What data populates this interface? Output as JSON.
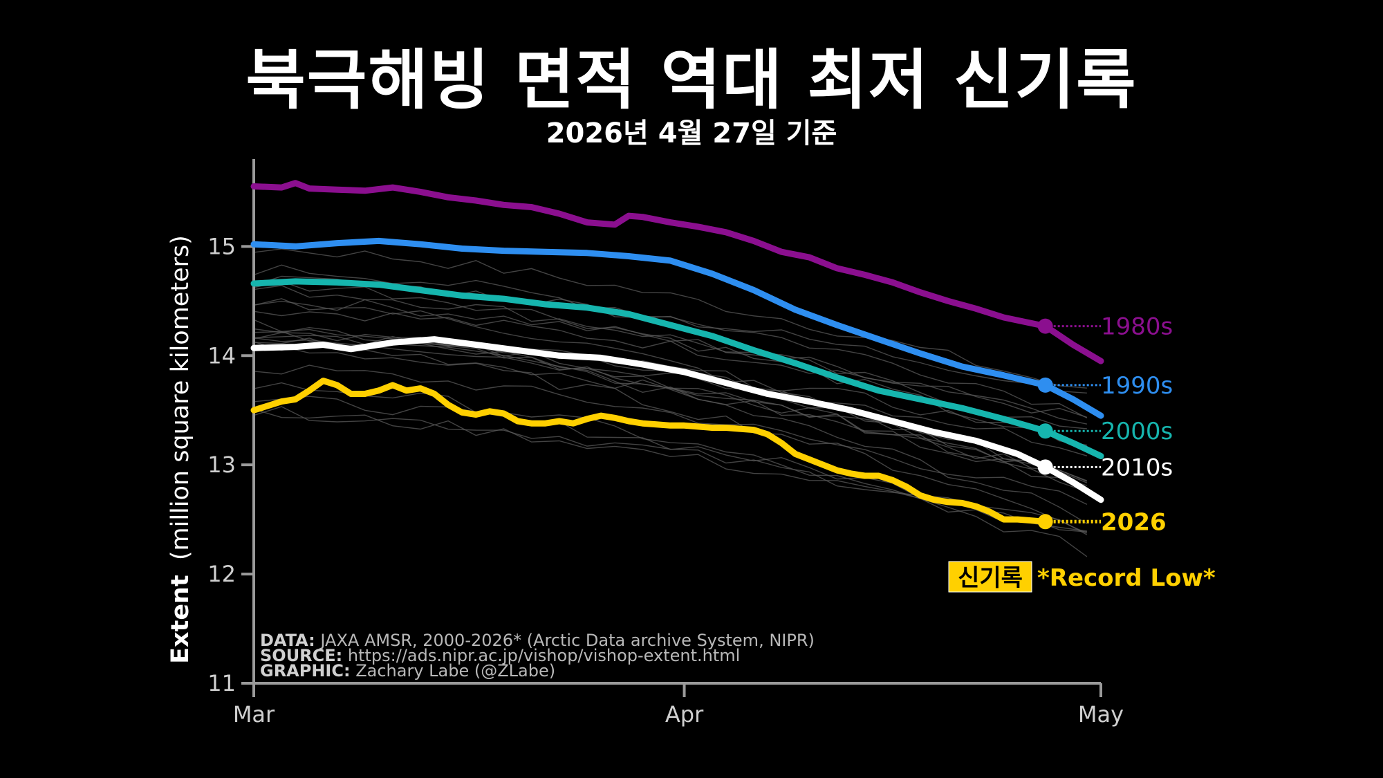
{
  "header": {
    "title": "북극해빙 면적 역대 최저 신기록",
    "subtitle": "2026년 4월 27일 기준"
  },
  "chart_data": {
    "type": "line",
    "ylabel_bold": "Extent",
    "ylabel_rest": "(million square kilometers)",
    "xlabel": "",
    "ylim": [
      11,
      15.8
    ],
    "yticks": [
      11,
      12,
      13,
      14,
      15
    ],
    "x_domain": [
      "03-01",
      "05-01"
    ],
    "x_ticks": [
      {
        "date": "03-01",
        "label": "Mar"
      },
      {
        "date": "04-01",
        "label": "Apr"
      },
      {
        "date": "05-01",
        "label": "May"
      }
    ],
    "grid": false,
    "marker_date": "04-27",
    "series": [
      {
        "name": "1980s",
        "color": "#8b0f8f",
        "x": [
          "03-01",
          "03-03",
          "03-04",
          "03-05",
          "03-07",
          "03-09",
          "03-11",
          "03-13",
          "03-15",
          "03-17",
          "03-19",
          "03-21",
          "03-23",
          "03-25",
          "03-27",
          "03-28",
          "03-29",
          "03-31",
          "04-02",
          "04-04",
          "04-06",
          "04-08",
          "04-10",
          "04-12",
          "04-14",
          "04-16",
          "04-18",
          "04-20",
          "04-22",
          "04-24",
          "04-27",
          "04-29",
          "05-01"
        ],
        "y": [
          15.55,
          15.54,
          15.58,
          15.53,
          15.52,
          15.51,
          15.54,
          15.5,
          15.45,
          15.42,
          15.38,
          15.36,
          15.3,
          15.22,
          15.2,
          15.28,
          15.27,
          15.22,
          15.18,
          15.13,
          15.05,
          14.95,
          14.9,
          14.8,
          14.74,
          14.67,
          14.58,
          14.5,
          14.43,
          14.35,
          14.27,
          14.1,
          13.95
        ]
      },
      {
        "name": "1990s",
        "color": "#2e8ef0",
        "x": [
          "03-01",
          "03-04",
          "03-07",
          "03-10",
          "03-13",
          "03-16",
          "03-19",
          "03-22",
          "03-25",
          "03-28",
          "03-31",
          "04-03",
          "04-06",
          "04-09",
          "04-12",
          "04-15",
          "04-18",
          "04-21",
          "04-24",
          "04-27",
          "04-29",
          "05-01"
        ],
        "y": [
          15.02,
          15.0,
          15.03,
          15.05,
          15.02,
          14.98,
          14.96,
          14.95,
          14.94,
          14.91,
          14.87,
          14.75,
          14.6,
          14.42,
          14.28,
          14.15,
          14.02,
          13.9,
          13.82,
          13.73,
          13.6,
          13.45
        ]
      },
      {
        "name": "2000s",
        "color": "#16b5ae",
        "x": [
          "03-01",
          "03-04",
          "03-07",
          "03-10",
          "03-13",
          "03-16",
          "03-19",
          "03-22",
          "03-25",
          "03-28",
          "03-31",
          "04-03",
          "04-06",
          "04-09",
          "04-12",
          "04-15",
          "04-18",
          "04-21",
          "04-24",
          "04-27",
          "04-29",
          "05-01"
        ],
        "y": [
          14.66,
          14.68,
          14.67,
          14.65,
          14.6,
          14.55,
          14.52,
          14.47,
          14.44,
          14.38,
          14.28,
          14.18,
          14.05,
          13.93,
          13.8,
          13.68,
          13.6,
          13.52,
          13.42,
          13.31,
          13.2,
          13.08
        ]
      },
      {
        "name": "2010s",
        "color": "#ffffff",
        "x": [
          "03-01",
          "03-04",
          "03-06",
          "03-08",
          "03-11",
          "03-14",
          "03-17",
          "03-20",
          "03-23",
          "03-26",
          "03-29",
          "04-01",
          "04-04",
          "04-07",
          "04-10",
          "04-13",
          "04-16",
          "04-19",
          "04-22",
          "04-25",
          "04-27",
          "04-29",
          "05-01"
        ],
        "y": [
          14.07,
          14.08,
          14.1,
          14.06,
          14.12,
          14.15,
          14.1,
          14.05,
          14.0,
          13.98,
          13.92,
          13.85,
          13.75,
          13.65,
          13.58,
          13.5,
          13.4,
          13.3,
          13.22,
          13.1,
          12.98,
          12.84,
          12.68
        ]
      },
      {
        "name": "2026",
        "color": "#ffd000",
        "x": [
          "03-01",
          "03-03",
          "03-04",
          "03-05",
          "03-06",
          "03-07",
          "03-08",
          "03-09",
          "03-10",
          "03-11",
          "03-12",
          "03-13",
          "03-14",
          "03-15",
          "03-16",
          "03-17",
          "03-18",
          "03-19",
          "03-20",
          "03-21",
          "03-22",
          "03-23",
          "03-24",
          "03-25",
          "03-26",
          "03-27",
          "03-28",
          "03-29",
          "03-30",
          "03-31",
          "04-01",
          "04-02",
          "04-03",
          "04-04",
          "04-05",
          "04-06",
          "04-07",
          "04-08",
          "04-09",
          "04-10",
          "04-11",
          "04-12",
          "04-13",
          "04-14",
          "04-15",
          "04-16",
          "04-17",
          "04-18",
          "04-19",
          "04-20",
          "04-21",
          "04-22",
          "04-23",
          "04-24",
          "04-25",
          "04-26",
          "04-27"
        ],
        "y": [
          13.5,
          13.58,
          13.6,
          13.68,
          13.77,
          13.73,
          13.65,
          13.65,
          13.68,
          13.73,
          13.68,
          13.7,
          13.65,
          13.55,
          13.48,
          13.46,
          13.49,
          13.47,
          13.4,
          13.38,
          13.38,
          13.4,
          13.38,
          13.42,
          13.45,
          13.43,
          13.4,
          13.38,
          13.37,
          13.36,
          13.36,
          13.35,
          13.34,
          13.34,
          13.33,
          13.32,
          13.28,
          13.2,
          13.1,
          13.05,
          13.0,
          12.95,
          12.92,
          12.9,
          12.9,
          12.86,
          12.8,
          12.72,
          12.68,
          12.66,
          12.65,
          12.62,
          12.57,
          12.5,
          12.5,
          12.49,
          12.48
        ]
      }
    ],
    "series_labels": [
      "1980s",
      "1990s",
      "2000s",
      "2010s",
      "2026"
    ],
    "record_badge": "신기록",
    "record_text": "*Record Low*",
    "credits": [
      {
        "bold": "DATA:",
        "text": " JAXA AMSR, 2000-2026* (Arctic Data archive System, NIPR)"
      },
      {
        "bold": "SOURCE:",
        "text": " https://ads.nipr.ac.jp/vishop/vishop-extent.html"
      },
      {
        "bold": "GRAPHIC:",
        "text": " Zachary Labe (@ZLabe)"
      }
    ],
    "colors": {
      "background": "#000000",
      "axis": "#9a9a9a",
      "background_lines": "#5a5a5a",
      "badge_bg": "#ffd000",
      "badge_text": "#000000"
    }
  }
}
